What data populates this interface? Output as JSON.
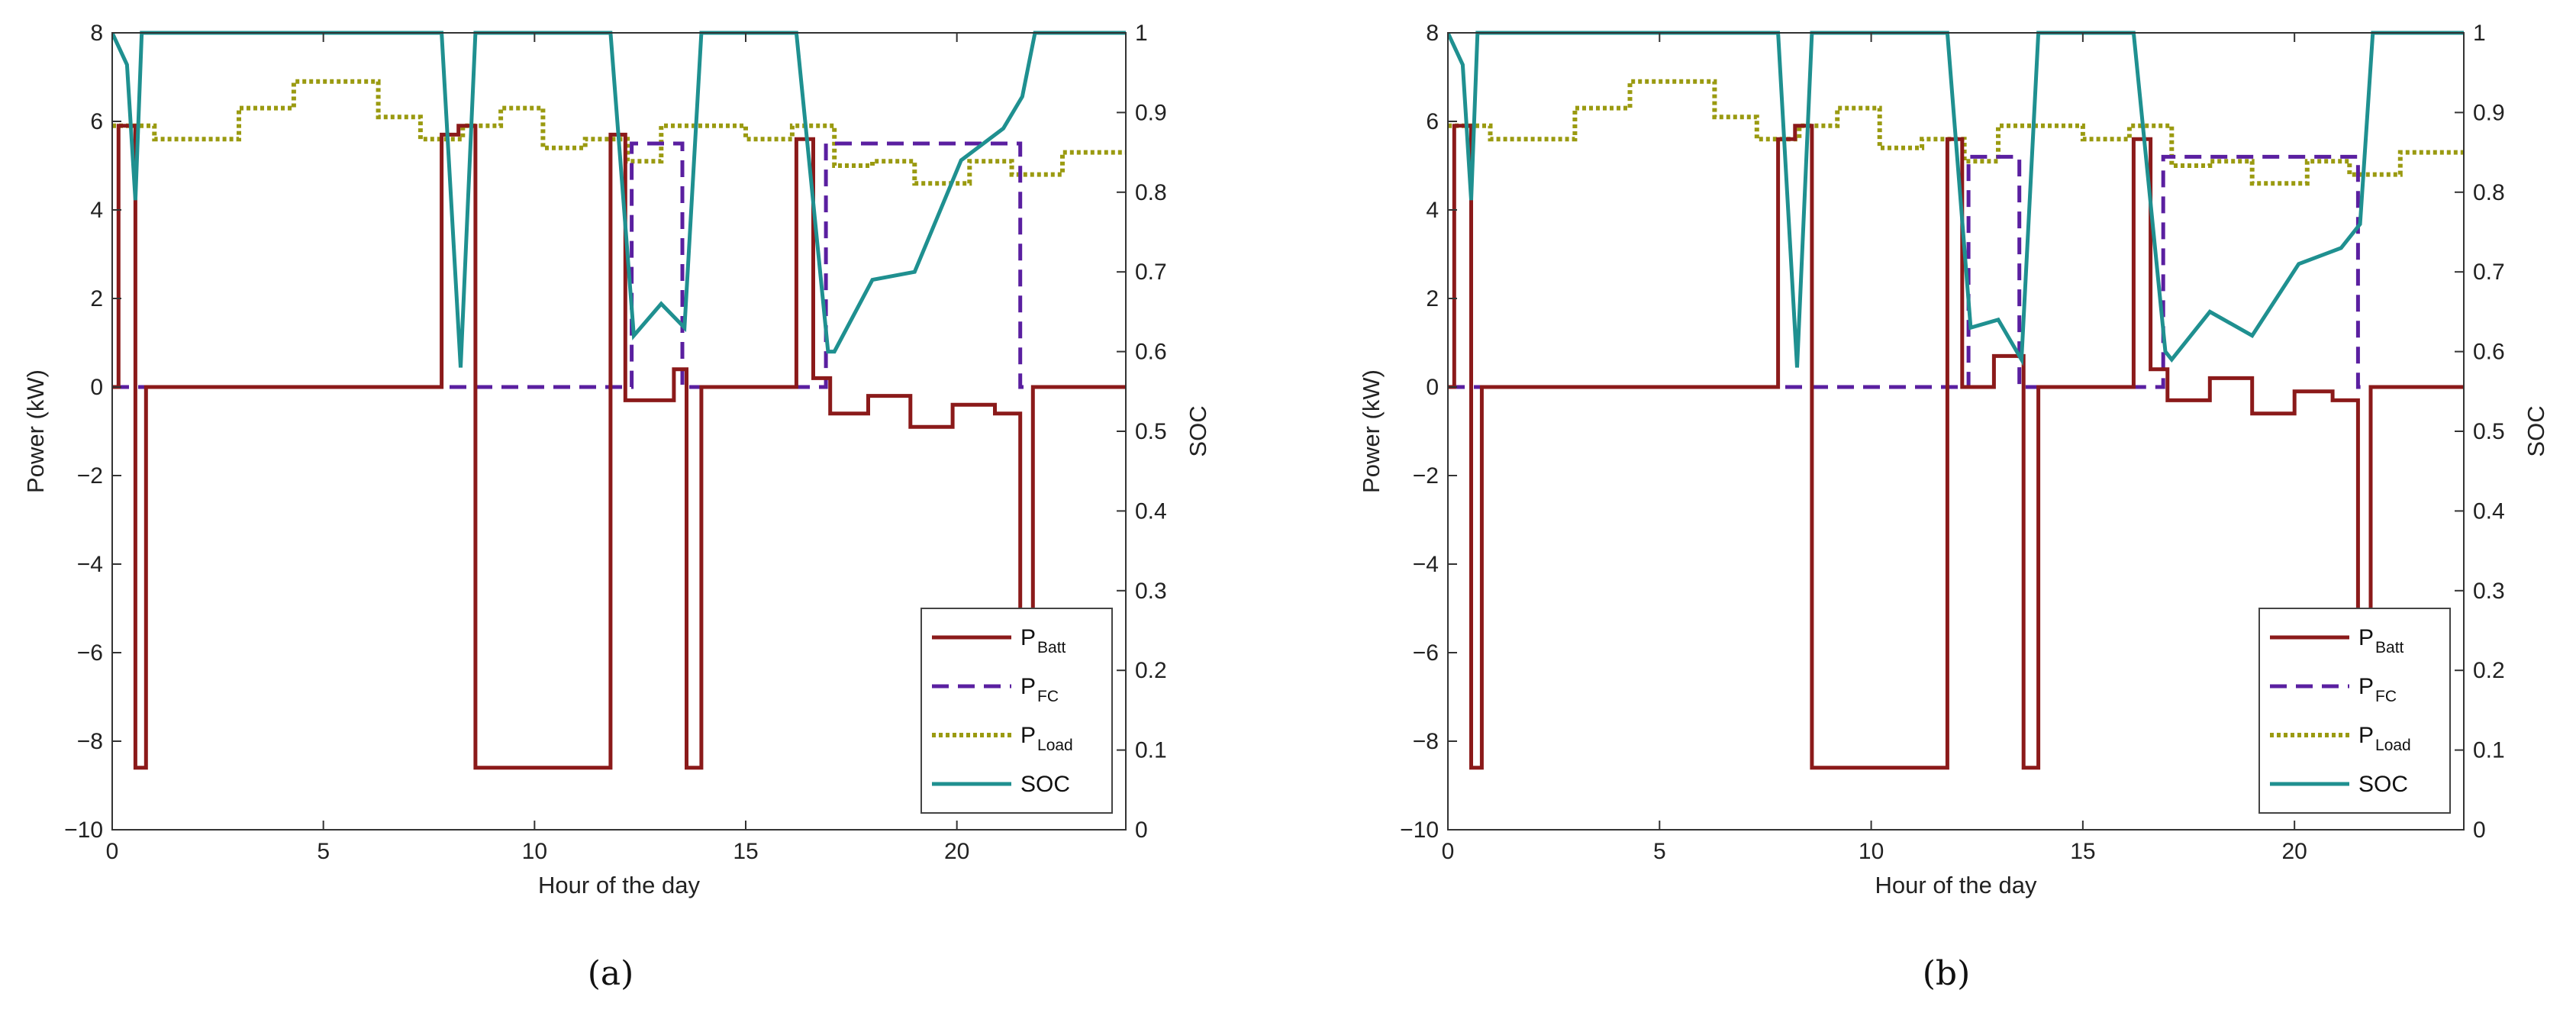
{
  "colors": {
    "batt": "#8b1a1a",
    "fc": "#5a1fa0",
    "load": "#9a9a10",
    "soc": "#1f9090",
    "axis": "#333333",
    "legend_border": "#444444"
  },
  "chart_data": [
    {
      "type": "line",
      "panel_label": "(a)",
      "xlabel": "Hour of the day",
      "ylabel": "Power (kW)",
      "y2label": "SOC",
      "xlim": [
        0,
        24
      ],
      "ylim": [
        -10,
        8
      ],
      "y2lim": [
        0,
        1
      ],
      "xticks": [
        "0",
        "5",
        "10",
        "15",
        "20"
      ],
      "yticks": [
        "8",
        "6",
        "4",
        "2",
        "0",
        "−2",
        "−4",
        "−6",
        "−8",
        "−10"
      ],
      "y2ticks": [
        "1",
        "0.9",
        "0.8",
        "0.7",
        "0.6",
        "0.5",
        "0.4",
        "0.3",
        "0.2",
        "0.1",
        "0"
      ],
      "legend": {
        "position": "bottom-right",
        "entries": [
          {
            "base": "P",
            "sub": "Batt",
            "series": "batt"
          },
          {
            "base": "P",
            "sub": "FC",
            "series": "fc"
          },
          {
            "base": "P",
            "sub": "Load",
            "series": "load"
          },
          {
            "base": "SOC",
            "sub": "",
            "series": "soc"
          }
        ]
      },
      "series": [
        {
          "name": "P_Batt",
          "key": "batt",
          "axis": "left",
          "step": true,
          "x": [
            0,
            0.15,
            0.55,
            0.8,
            7.8,
            8.2,
            8.6,
            11.8,
            12.15,
            12.8,
            13.3,
            13.6,
            13.95,
            16.2,
            16.6,
            17.0,
            17.9,
            18.9,
            19.9,
            20.9,
            21.5,
            21.8,
            24
          ],
          "y": [
            0,
            5.9,
            -8.6,
            0,
            5.7,
            5.9,
            -8.6,
            5.7,
            -0.3,
            -0.3,
            0.4,
            -8.6,
            0,
            5.6,
            0.2,
            -0.6,
            -0.2,
            -0.9,
            -0.4,
            -0.6,
            -8.6,
            0,
            0
          ]
        },
        {
          "name": "P_FC",
          "key": "fc",
          "axis": "left",
          "step": true,
          "x": [
            0,
            12.3,
            13.5,
            16.9,
            21.5,
            24
          ],
          "y": [
            0,
            5.5,
            0,
            5.5,
            0,
            0
          ]
        },
        {
          "name": "P_Load",
          "key": "load",
          "axis": "left",
          "step": true,
          "x": [
            0,
            1,
            3,
            4.3,
            6.3,
            7.3,
            8.3,
            9.2,
            10.2,
            11.2,
            12.2,
            13,
            15,
            16.1,
            17.1,
            18,
            19,
            20.3,
            21.3,
            22.5,
            24
          ],
          "y": [
            5.9,
            5.6,
            6.3,
            6.9,
            6.1,
            5.6,
            5.9,
            6.3,
            5.4,
            5.6,
            5.1,
            5.9,
            5.6,
            5.9,
            5.0,
            5.1,
            4.6,
            5.1,
            4.8,
            5.3,
            5.3
          ]
        },
        {
          "name": "SOC",
          "key": "soc",
          "axis": "right",
          "step": false,
          "x": [
            0,
            0.35,
            0.55,
            0.7,
            7.8,
            8.25,
            8.6,
            11.8,
            12.35,
            13.0,
            13.55,
            13.95,
            16.2,
            16.95,
            17.1,
            18.0,
            19.0,
            20.1,
            21.1,
            21.55,
            21.85,
            24
          ],
          "y": [
            1,
            0.96,
            0.79,
            1,
            1,
            0.58,
            1,
            1,
            0.62,
            0.66,
            0.63,
            1,
            1,
            0.6,
            0.6,
            0.69,
            0.7,
            0.84,
            0.88,
            0.92,
            1,
            1
          ]
        }
      ]
    },
    {
      "type": "line",
      "panel_label": "(b)",
      "xlabel": "Hour of the day",
      "ylabel": "Power (kW)",
      "y2label": "SOC",
      "xlim": [
        0,
        24
      ],
      "ylim": [
        -10,
        8
      ],
      "y2lim": [
        0,
        1
      ],
      "xticks": [
        "0",
        "5",
        "10",
        "15",
        "20"
      ],
      "yticks": [
        "8",
        "6",
        "4",
        "2",
        "0",
        "−2",
        "−4",
        "−6",
        "−8",
        "−10"
      ],
      "y2ticks": [
        "1",
        "0.9",
        "0.8",
        "0.7",
        "0.6",
        "0.5",
        "0.4",
        "0.3",
        "0.2",
        "0.1",
        "0"
      ],
      "legend": {
        "position": "bottom-right",
        "entries": [
          {
            "base": "P",
            "sub": "Batt",
            "series": "batt"
          },
          {
            "base": "P",
            "sub": "FC",
            "series": "fc"
          },
          {
            "base": "P",
            "sub": "Load",
            "series": "load"
          },
          {
            "base": "SOC",
            "sub": "",
            "series": "soc"
          }
        ]
      },
      "series": [
        {
          "name": "P_Batt",
          "key": "batt",
          "axis": "left",
          "step": true,
          "x": [
            0,
            0.15,
            0.55,
            0.8,
            7.8,
            8.2,
            8.6,
            11.8,
            12.15,
            12.9,
            13.4,
            13.6,
            13.95,
            16.2,
            16.6,
            17.0,
            18.0,
            19.0,
            20.0,
            20.9,
            21.5,
            21.8,
            24
          ],
          "y": [
            0,
            5.9,
            -8.6,
            0,
            5.6,
            5.9,
            -8.6,
            5.6,
            0,
            0.7,
            0.7,
            -8.6,
            0,
            5.6,
            0.4,
            -0.3,
            0.2,
            -0.6,
            -0.1,
            -0.3,
            -8.6,
            0,
            0
          ]
        },
        {
          "name": "P_FC",
          "key": "fc",
          "axis": "left",
          "step": true,
          "x": [
            0,
            12.3,
            13.5,
            16.9,
            21.5,
            24
          ],
          "y": [
            0,
            5.2,
            0,
            5.2,
            0,
            0
          ]
        },
        {
          "name": "P_Load",
          "key": "load",
          "axis": "left",
          "step": true,
          "x": [
            0,
            1,
            3,
            4.3,
            6.3,
            7.3,
            8.3,
            9.2,
            10.2,
            11.2,
            12.2,
            13,
            15,
            16.1,
            17.1,
            18,
            19,
            20.3,
            21.3,
            22.5,
            24
          ],
          "y": [
            5.9,
            5.6,
            6.3,
            6.9,
            6.1,
            5.6,
            5.9,
            6.3,
            5.4,
            5.6,
            5.1,
            5.9,
            5.6,
            5.9,
            5.0,
            5.1,
            4.6,
            5.1,
            4.8,
            5.3,
            5.3
          ]
        },
        {
          "name": "SOC",
          "key": "soc",
          "axis": "right",
          "step": false,
          "x": [
            0,
            0.35,
            0.55,
            0.7,
            7.8,
            8.25,
            8.6,
            11.8,
            12.35,
            13.0,
            13.55,
            13.95,
            16.2,
            16.95,
            17.1,
            18.0,
            19.0,
            20.1,
            21.1,
            21.55,
            21.85,
            24
          ],
          "y": [
            1,
            0.96,
            0.79,
            1,
            1,
            0.58,
            1,
            1,
            0.63,
            0.64,
            0.59,
            1,
            1,
            0.6,
            0.59,
            0.65,
            0.62,
            0.71,
            0.73,
            0.76,
            1,
            1
          ]
        }
      ]
    }
  ]
}
